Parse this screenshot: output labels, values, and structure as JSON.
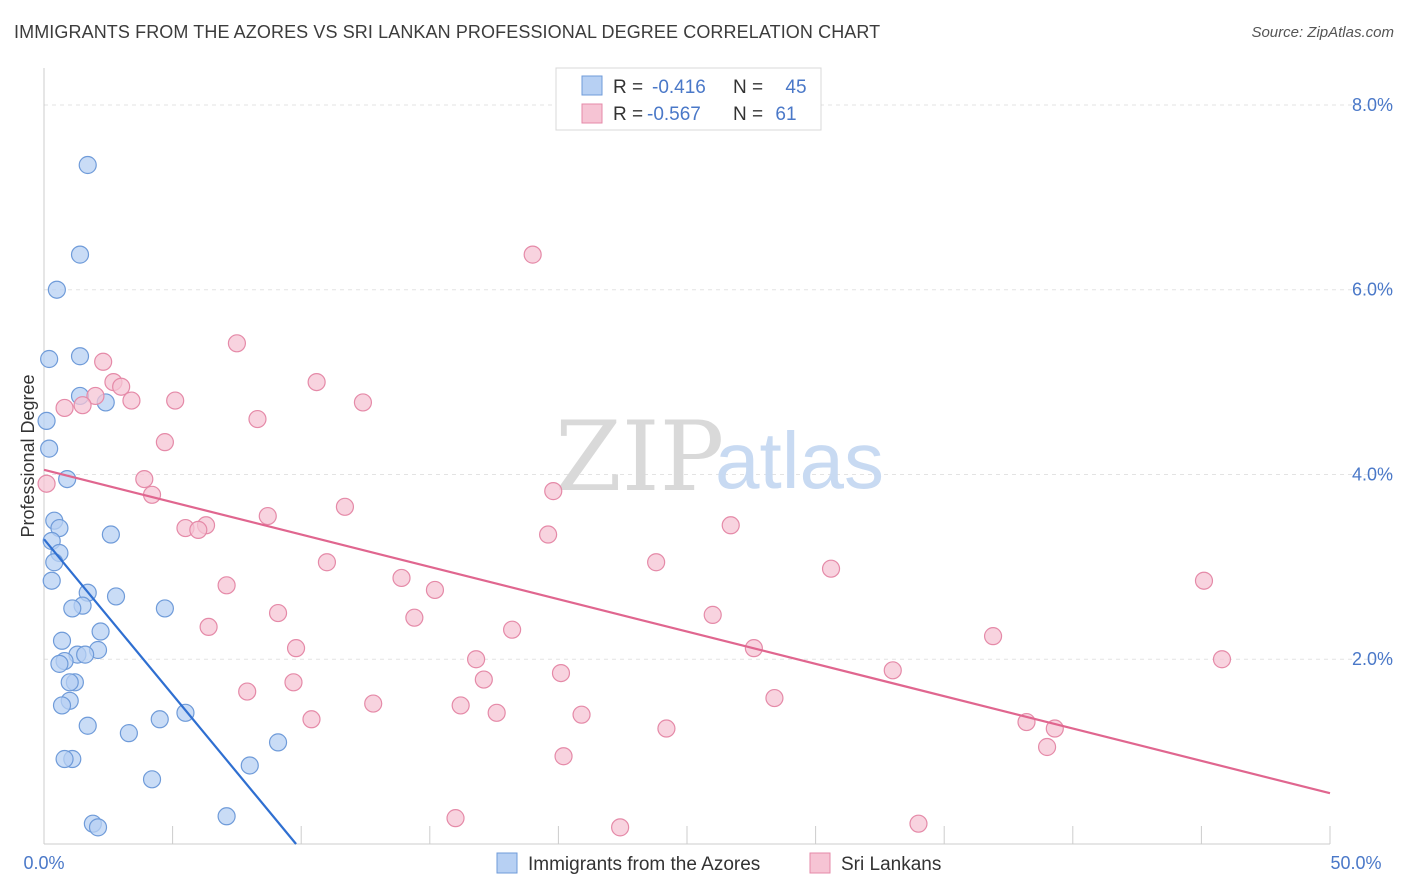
{
  "header": {
    "title": "IMMIGRANTS FROM THE AZORES VS SRI LANKAN PROFESSIONAL DEGREE CORRELATION CHART",
    "source": "Source: ZipAtlas.com"
  },
  "watermark": {
    "zip": "ZIP",
    "atlas": "atlas"
  },
  "colors": {
    "blue_fill": "#b7d0f3",
    "blue_stroke": "#6f9bd9",
    "blue_line": "#2f6fd1",
    "pink_fill": "#f6c4d4",
    "pink_stroke": "#e58aa8",
    "pink_line": "#e0668f",
    "tick_text": "#4a78c8",
    "grid": "#e3e3e3"
  },
  "chart_data": {
    "type": "scatter",
    "title": "IMMIGRANTS FROM THE AZORES VS SRI LANKAN PROFESSIONAL DEGREE CORRELATION CHART",
    "xlabel": "",
    "ylabel": "Professional Degree",
    "xlim": [
      0,
      50
    ],
    "ylim": [
      0,
      8.4
    ],
    "x_tick_labels": {
      "left": "0.0%",
      "right": "50.0%"
    },
    "y_ticks": [
      {
        "value": 2,
        "label": "2.0%"
      },
      {
        "value": 4,
        "label": "4.0%"
      },
      {
        "value": 6,
        "label": "6.0%"
      },
      {
        "value": 8,
        "label": "8.0%"
      }
    ],
    "stats": [
      {
        "r_label": "R =",
        "r_value": "-0.416",
        "n_label": "N =",
        "n_value": "45"
      },
      {
        "r_label": "R =",
        "r_value": "-0.567",
        "n_label": "N =",
        "n_value": "61"
      }
    ],
    "series": [
      {
        "name": "Immigrants from the Azores",
        "trend": {
          "x": [
            0,
            9.8
          ],
          "y": [
            3.3,
            0.0
          ]
        },
        "points": [
          [
            1.7,
            7.35
          ],
          [
            1.4,
            6.38
          ],
          [
            0.5,
            6.0
          ],
          [
            0.2,
            5.25
          ],
          [
            1.4,
            5.28
          ],
          [
            1.4,
            4.85
          ],
          [
            2.4,
            4.78
          ],
          [
            0.1,
            4.58
          ],
          [
            0.2,
            4.28
          ],
          [
            0.9,
            3.95
          ],
          [
            0.4,
            3.5
          ],
          [
            0.6,
            3.42
          ],
          [
            2.6,
            3.35
          ],
          [
            0.3,
            3.28
          ],
          [
            0.6,
            3.15
          ],
          [
            0.4,
            3.05
          ],
          [
            0.3,
            2.85
          ],
          [
            1.7,
            2.72
          ],
          [
            2.8,
            2.68
          ],
          [
            1.5,
            2.58
          ],
          [
            1.1,
            2.55
          ],
          [
            4.7,
            2.55
          ],
          [
            2.2,
            2.3
          ],
          [
            0.7,
            2.2
          ],
          [
            2.1,
            2.1
          ],
          [
            1.3,
            2.05
          ],
          [
            1.6,
            2.05
          ],
          [
            0.8,
            1.98
          ],
          [
            0.6,
            1.95
          ],
          [
            1.2,
            1.75
          ],
          [
            1.0,
            1.75
          ],
          [
            1.0,
            1.55
          ],
          [
            0.7,
            1.5
          ],
          [
            5.5,
            1.42
          ],
          [
            4.5,
            1.35
          ],
          [
            1.7,
            1.28
          ],
          [
            3.3,
            1.2
          ],
          [
            9.1,
            1.1
          ],
          [
            1.1,
            0.92
          ],
          [
            0.8,
            0.92
          ],
          [
            8.0,
            0.85
          ],
          [
            4.2,
            0.7
          ],
          [
            7.1,
            0.3
          ],
          [
            1.9,
            0.22
          ],
          [
            2.1,
            0.18
          ]
        ]
      },
      {
        "name": "Sri Lankans",
        "trend": {
          "x": [
            0,
            50
          ],
          "y": [
            4.05,
            0.55
          ]
        },
        "points": [
          [
            19.0,
            6.38
          ],
          [
            7.5,
            5.42
          ],
          [
            2.3,
            5.22
          ],
          [
            2.7,
            5.0
          ],
          [
            10.6,
            5.0
          ],
          [
            3.0,
            4.95
          ],
          [
            2.0,
            4.85
          ],
          [
            1.5,
            4.75
          ],
          [
            3.4,
            4.8
          ],
          [
            5.1,
            4.8
          ],
          [
            12.4,
            4.78
          ],
          [
            8.3,
            4.6
          ],
          [
            4.7,
            4.35
          ],
          [
            3.9,
            3.95
          ],
          [
            0.1,
            3.9
          ],
          [
            19.8,
            3.82
          ],
          [
            4.2,
            3.78
          ],
          [
            11.7,
            3.65
          ],
          [
            8.7,
            3.55
          ],
          [
            5.5,
            3.42
          ],
          [
            6.3,
            3.45
          ],
          [
            26.7,
            3.45
          ],
          [
            6.0,
            3.4
          ],
          [
            19.6,
            3.35
          ],
          [
            11.0,
            3.05
          ],
          [
            23.8,
            3.05
          ],
          [
            30.6,
            2.98
          ],
          [
            13.9,
            2.88
          ],
          [
            45.1,
            2.85
          ],
          [
            7.1,
            2.8
          ],
          [
            15.2,
            2.75
          ],
          [
            9.1,
            2.5
          ],
          [
            14.4,
            2.45
          ],
          [
            26.0,
            2.48
          ],
          [
            6.4,
            2.35
          ],
          [
            18.2,
            2.32
          ],
          [
            36.9,
            2.25
          ],
          [
            9.8,
            2.12
          ],
          [
            27.6,
            2.12
          ],
          [
            16.8,
            2.0
          ],
          [
            45.8,
            2.0
          ],
          [
            20.1,
            1.85
          ],
          [
            33.0,
            1.88
          ],
          [
            17.1,
            1.78
          ],
          [
            9.7,
            1.75
          ],
          [
            7.9,
            1.65
          ],
          [
            28.4,
            1.58
          ],
          [
            12.8,
            1.52
          ],
          [
            16.2,
            1.5
          ],
          [
            17.6,
            1.42
          ],
          [
            20.9,
            1.4
          ],
          [
            10.4,
            1.35
          ],
          [
            38.2,
            1.32
          ],
          [
            39.3,
            1.25
          ],
          [
            39.0,
            1.05
          ],
          [
            20.2,
            0.95
          ],
          [
            16.0,
            0.28
          ],
          [
            34.0,
            0.22
          ],
          [
            24.2,
            1.25
          ],
          [
            0.8,
            4.72
          ],
          [
            22.4,
            0.18
          ]
        ]
      }
    ],
    "legend": [
      "Immigrants from the Azores",
      "Sri Lankans"
    ],
    "legend_position": "bottom-center",
    "stats_position": "top-center",
    "grid": true
  }
}
